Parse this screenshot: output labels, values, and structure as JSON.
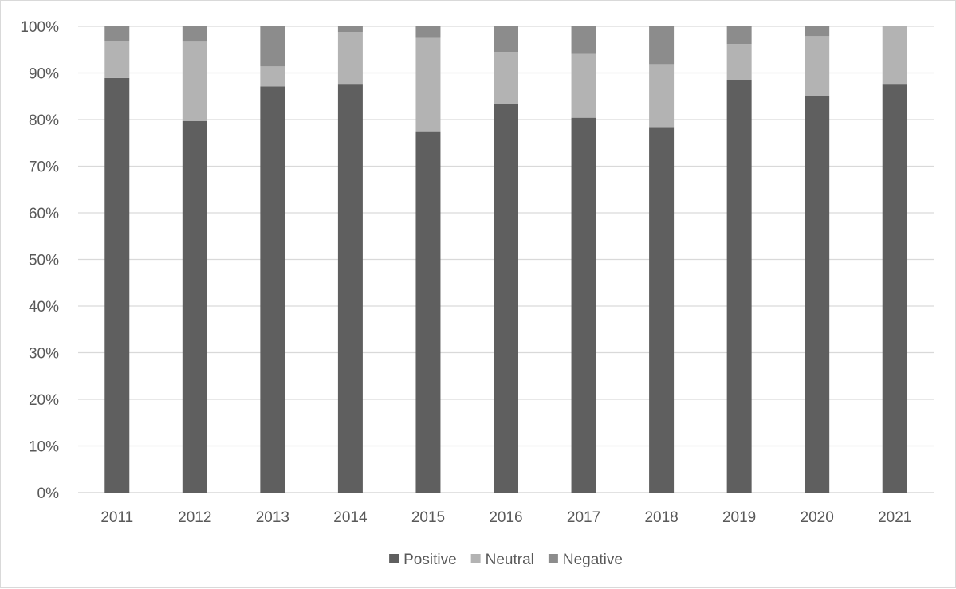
{
  "chart_data": {
    "type": "bar",
    "stacked": true,
    "percent_stacked": true,
    "categories": [
      "2011",
      "2012",
      "2013",
      "2014",
      "2015",
      "2016",
      "2017",
      "2018",
      "2019",
      "2020",
      "2021"
    ],
    "series": [
      {
        "name": "Positive",
        "color": "#5f5f5f",
        "values": [
          88.9,
          79.7,
          87.1,
          87.5,
          77.5,
          83.3,
          80.4,
          78.4,
          88.5,
          85.1,
          87.5
        ]
      },
      {
        "name": "Neutral",
        "color": "#b3b3b3",
        "values": [
          7.9,
          17.0,
          4.3,
          11.3,
          20.0,
          11.2,
          13.7,
          13.5,
          7.7,
          12.8,
          12.5
        ]
      },
      {
        "name": "Negative",
        "color": "#8c8c8c",
        "values": [
          3.2,
          3.3,
          8.6,
          1.2,
          2.5,
          5.5,
          5.9,
          8.1,
          3.8,
          2.1,
          0.0
        ]
      }
    ],
    "yticks": [
      "0%",
      "10%",
      "20%",
      "30%",
      "40%",
      "50%",
      "60%",
      "70%",
      "80%",
      "90%",
      "100%"
    ],
    "ylim": [
      0,
      100
    ],
    "grid": true,
    "legend_position": "bottom",
    "title": "",
    "xlabel": "",
    "ylabel": ""
  }
}
